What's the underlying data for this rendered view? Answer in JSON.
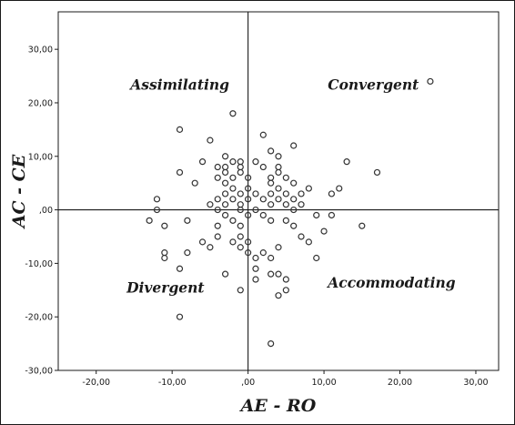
{
  "chart_data": {
    "type": "scatter",
    "xlabel": "AE - RO",
    "ylabel": "AC - CE",
    "xlim": [
      -25,
      33
    ],
    "ylim": [
      -30,
      37
    ],
    "x_ticks": [
      -20,
      -10,
      0,
      10,
      20,
      30
    ],
    "y_ticks": [
      -30,
      -20,
      -10,
      0,
      10,
      20,
      30
    ],
    "x_tick_labels": [
      "-20,00",
      "-10,00",
      ",00",
      "10,00",
      "20,00",
      "30,00"
    ],
    "y_tick_labels": [
      "-30,00",
      "-20,00",
      "-10,00",
      ",00",
      "10,00",
      "20,00",
      "30,00"
    ],
    "reference_lines": {
      "x": 0,
      "y": 0
    },
    "grid": false,
    "legend": "none",
    "marker": "open-circle",
    "quadrant_labels": [
      {
        "text": "Assimilating",
        "x": -15.5,
        "y": 22.5
      },
      {
        "text": "Convergent",
        "x": 10.5,
        "y": 22.5
      },
      {
        "text": "Divergent",
        "x": -16,
        "y": -15.5
      },
      {
        "text": "Accommodating",
        "x": 10.5,
        "y": -14.5
      }
    ],
    "points": [
      [
        24,
        24
      ],
      [
        -2,
        18
      ],
      [
        -9,
        15
      ],
      [
        2,
        14
      ],
      [
        -5,
        13
      ],
      [
        6,
        12
      ],
      [
        3,
        11
      ],
      [
        -3,
        10
      ],
      [
        4,
        10
      ],
      [
        -6,
        9
      ],
      [
        -2,
        9
      ],
      [
        1,
        9
      ],
      [
        -1,
        9
      ],
      [
        13,
        9
      ],
      [
        -4,
        8
      ],
      [
        -3,
        8
      ],
      [
        -1,
        8
      ],
      [
        2,
        8
      ],
      [
        4,
        8
      ],
      [
        -9,
        7
      ],
      [
        -3,
        7
      ],
      [
        -1,
        7
      ],
      [
        4,
        7
      ],
      [
        17,
        7
      ],
      [
        -4,
        6
      ],
      [
        -2,
        6
      ],
      [
        0,
        6
      ],
      [
        3,
        6
      ],
      [
        5,
        6
      ],
      [
        -7,
        5
      ],
      [
        -3,
        5
      ],
      [
        3,
        5
      ],
      [
        6,
        5
      ],
      [
        -2,
        4
      ],
      [
        0,
        4
      ],
      [
        4,
        4
      ],
      [
        8,
        4
      ],
      [
        12,
        4
      ],
      [
        -3,
        3
      ],
      [
        -1,
        3
      ],
      [
        1,
        3
      ],
      [
        3,
        3
      ],
      [
        5,
        3
      ],
      [
        7,
        3
      ],
      [
        11,
        3
      ],
      [
        -12,
        2
      ],
      [
        -4,
        2
      ],
      [
        -2,
        2
      ],
      [
        0,
        2
      ],
      [
        2,
        2
      ],
      [
        4,
        2
      ],
      [
        6,
        2
      ],
      [
        -5,
        1
      ],
      [
        -3,
        1
      ],
      [
        -1,
        1
      ],
      [
        3,
        1
      ],
      [
        5,
        1
      ],
      [
        7,
        1
      ],
      [
        -12,
        0
      ],
      [
        -4,
        0
      ],
      [
        -1,
        0
      ],
      [
        1,
        0
      ],
      [
        6,
        0
      ],
      [
        -3,
        -1
      ],
      [
        0,
        -1
      ],
      [
        2,
        -1
      ],
      [
        9,
        -1
      ],
      [
        11,
        -1
      ],
      [
        -11,
        -3
      ],
      [
        -4,
        -3
      ],
      [
        -1,
        -3
      ],
      [
        6,
        -3
      ],
      [
        15,
        -3
      ],
      [
        -13,
        -2
      ],
      [
        -8,
        -2
      ],
      [
        -2,
        -2
      ],
      [
        3,
        -2
      ],
      [
        5,
        -2
      ],
      [
        -4,
        -5
      ],
      [
        -1,
        -5
      ],
      [
        7,
        -5
      ],
      [
        10,
        -4
      ],
      [
        -6,
        -6
      ],
      [
        -2,
        -6
      ],
      [
        0,
        -6
      ],
      [
        8,
        -6
      ],
      [
        -5,
        -7
      ],
      [
        -1,
        -7
      ],
      [
        4,
        -7
      ],
      [
        -11,
        -8
      ],
      [
        -8,
        -8
      ],
      [
        2,
        -8
      ],
      [
        0,
        -8
      ],
      [
        -11,
        -9
      ],
      [
        1,
        -9
      ],
      [
        3,
        -9
      ],
      [
        9,
        -9
      ],
      [
        -9,
        -11
      ],
      [
        1,
        -11
      ],
      [
        -3,
        -12
      ],
      [
        3,
        -12
      ],
      [
        4,
        -12
      ],
      [
        5,
        -13
      ],
      [
        1,
        -13
      ],
      [
        -1,
        -15
      ],
      [
        5,
        -15
      ],
      [
        4,
        -16
      ],
      [
        -9,
        -20
      ],
      [
        3,
        -25
      ]
    ]
  }
}
